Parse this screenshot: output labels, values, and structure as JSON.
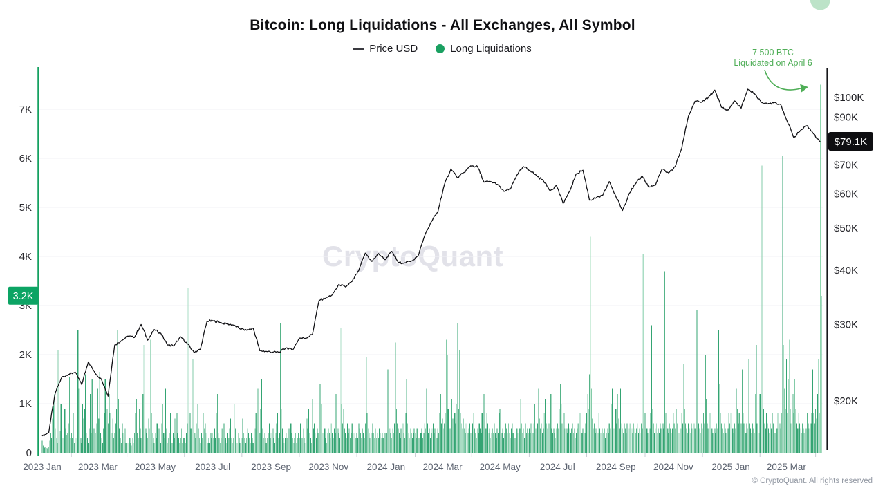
{
  "page": {
    "title": "Bitcoin: Long Liquidations - All Exchanges, All Symbol",
    "watermark": "CryptoQuant",
    "copyright": "© CryptoQuant. All rights reserved"
  },
  "legend": {
    "items": [
      {
        "label": "Price USD",
        "marker": "line",
        "color": "#26262b"
      },
      {
        "label": "Long Liquidations",
        "marker": "dot",
        "color": "#1aa061"
      }
    ]
  },
  "annotation": {
    "line1": "7 500 BTC",
    "line2": "Liquidated on April 6",
    "color": "#4fae57"
  },
  "badges": {
    "left_value": "3.2K",
    "left_bg": "#0ca464",
    "right_value": "$79.1K",
    "right_bg": "#0e0e11"
  },
  "axes": {
    "left": {
      "unit": "K BTC",
      "tick_labels": [
        "7K",
        "6K",
        "5K",
        "4K",
        "3K",
        "2K",
        "1K",
        "0"
      ],
      "tick_values": [
        7,
        6,
        5,
        4,
        3,
        2,
        1,
        0
      ],
      "color": "#15a161"
    },
    "right": {
      "unit": "USD",
      "scale": "log",
      "tick_labels": [
        "$100K",
        "$90K",
        "$70K",
        "$60K",
        "$50K",
        "$40K",
        "$30K",
        "$20K"
      ],
      "tick_values": [
        100,
        90,
        70,
        60,
        50,
        40,
        30,
        20
      ],
      "color": "#17171a"
    },
    "x": {
      "tick_labels": [
        "2023 Jan",
        "2023 Mar",
        "2023 May",
        "2023 Jul",
        "2023 Sep",
        "2023 Nov",
        "2024 Jan",
        "2024 Mar",
        "2024 May",
        "2024 Jul",
        "2024 Sep",
        "2024 Nov",
        "2025 Jan",
        "2025 Mar"
      ],
      "tick_days": [
        0,
        59,
        120,
        181,
        243,
        304,
        365,
        425,
        486,
        547,
        609,
        670,
        731,
        790
      ],
      "color": "#5c6370"
    }
  },
  "chart_data": {
    "type": "mixed",
    "title": "Bitcoin: Long Liquidations - All Exchanges, All Symbol",
    "x_start": "2023-01-01",
    "x_end": "2025-04-07",
    "left_ylim": [
      0,
      7.86
    ],
    "right_scale": "log",
    "right_ylim": [
      17,
      110
    ],
    "grid": "horizontal",
    "highlight": {
      "date": "2025-04-06",
      "value_k_btc": 7.5
    },
    "latest": {
      "long_liquidations_k_btc": 3.2,
      "price_usd_k": 79.1
    },
    "months": [
      "2023-01",
      "2023-02",
      "2023-03",
      "2023-04",
      "2023-05",
      "2023-06",
      "2023-07",
      "2023-08",
      "2023-09",
      "2023-10",
      "2023-11",
      "2023-12",
      "2024-01",
      "2024-02",
      "2024-03",
      "2024-04",
      "2024-05",
      "2024-06",
      "2024-07",
      "2024-08",
      "2024-09",
      "2024-10",
      "2024-11",
      "2024-12",
      "2025-01",
      "2025-02",
      "2025-03",
      "2025-04"
    ],
    "series": [
      {
        "name": "Long Liquidations",
        "type": "bar",
        "axis": "left",
        "unit": "K BTC",
        "interval": "1 day",
        "values_by_month": [
          [
            0.25,
            0.15,
            0.1,
            0.12,
            0.3,
            0.1,
            0.08,
            0.12,
            0.25,
            0.4,
            0.3,
            0.7,
            0.95,
            1.2,
            0.5,
            0.3,
            0.2,
            2.1,
            0.8,
            0.45,
            1.0,
            0.6,
            0.3,
            0.2,
            0.9,
            0.5,
            0.35,
            0.4,
            0.6,
            1.55,
            0.3
          ],
          [
            0.4,
            0.3,
            0.8,
            0.2,
            0.15,
            0.3,
            0.6,
            2.5,
            1.3,
            0.5,
            0.3,
            0.2,
            1.0,
            0.7,
            0.9,
            1.6,
            0.4,
            0.3,
            0.2,
            0.5,
            1.2,
            0.4,
            1.5,
            0.8,
            0.5,
            0.3,
            0.4,
            0.6
          ],
          [
            1.3,
            0.7,
            1.65,
            0.4,
            0.3,
            0.2,
            0.5,
            0.8,
            1.5,
            1.7,
            0.9,
            0.6,
            1.2,
            0.8,
            0.5,
            0.4,
            0.7,
            0.3,
            0.4,
            0.6,
            0.9,
            2.5,
            1.1,
            0.5,
            0.3,
            0.2,
            0.6,
            0.4,
            0.3,
            0.5,
            0.2
          ],
          [
            0.3,
            0.2,
            0.5,
            0.3,
            0.2,
            0.15,
            0.3,
            0.2,
            0.4,
            0.8,
            1.1,
            0.4,
            0.3,
            0.9,
            0.5,
            0.3,
            0.6,
            1.2,
            2.2,
            1.0,
            0.5,
            0.4,
            0.3,
            0.7,
            0.5,
            2.3,
            0.8,
            0.4,
            0.3,
            0.2
          ],
          [
            0.4,
            0.3,
            0.6,
            2.2,
            0.5,
            0.3,
            0.2,
            0.6,
            1.0,
            0.4,
            0.3,
            1.3,
            0.5,
            0.2,
            0.3,
            0.4,
            0.8,
            0.3,
            0.2,
            0.4,
            0.3,
            0.7,
            1.1,
            0.8,
            0.4,
            0.3,
            0.2,
            0.3,
            0.5,
            0.2,
            0.3
          ],
          [
            0.3,
            0.2,
            0.4,
            0.6,
            3.35,
            1.2,
            0.8,
            0.5,
            0.4,
            1.9,
            0.7,
            0.4,
            0.3,
            0.6,
            1.0,
            0.5,
            0.3,
            0.2,
            0.4,
            0.3,
            0.8,
            0.5,
            0.6,
            0.4,
            0.3,
            0.2,
            0.3,
            0.2,
            0.4,
            0.3
          ],
          [
            0.4,
            0.3,
            0.5,
            0.3,
            0.8,
            1.2,
            0.4,
            0.3,
            0.2,
            0.3,
            0.5,
            0.4,
            0.6,
            1.4,
            0.3,
            0.2,
            0.4,
            0.3,
            0.5,
            0.7,
            0.3,
            0.2,
            0.3,
            1.0,
            0.5,
            0.3,
            0.2,
            0.4,
            0.3,
            0.2,
            0.3
          ],
          [
            0.3,
            0.7,
            0.4,
            0.3,
            0.2,
            0.3,
            0.5,
            0.4,
            0.3,
            0.2,
            0.4,
            0.3,
            0.2,
            0.3,
            0.5,
            0.8,
            5.7,
            1.3,
            0.6,
            0.4,
            0.9,
            1.5,
            0.5,
            0.3,
            0.4,
            0.3,
            0.2,
            0.3,
            0.4,
            0.6,
            0.3
          ],
          [
            0.4,
            0.3,
            0.5,
            0.3,
            0.2,
            0.4,
            0.6,
            0.8,
            0.3,
            0.4,
            2.65,
            0.9,
            0.5,
            0.3,
            0.2,
            0.3,
            0.4,
            0.3,
            1.0,
            0.5,
            0.3,
            0.6,
            0.4,
            0.3,
            0.2,
            0.3,
            0.4,
            0.2,
            0.3,
            0.4
          ],
          [
            0.3,
            0.6,
            0.4,
            0.3,
            0.5,
            0.3,
            0.2,
            0.4,
            0.7,
            0.5,
            0.9,
            0.4,
            0.3,
            0.2,
            1.1,
            0.5,
            0.6,
            0.4,
            0.3,
            0.5,
            0.4,
            0.3,
            1.4,
            1.0,
            0.6,
            0.4,
            0.3,
            0.5,
            0.3,
            0.2,
            0.4
          ],
          [
            0.5,
            0.4,
            0.3,
            0.6,
            0.4,
            0.3,
            0.5,
            0.4,
            1.2,
            0.8,
            0.5,
            0.4,
            0.3,
            2.55,
            1.0,
            0.6,
            0.9,
            0.5,
            0.4,
            0.3,
            0.6,
            0.4,
            0.5,
            0.3,
            0.4,
            0.6,
            0.3,
            0.4,
            0.5,
            0.3
          ],
          [
            0.4,
            0.3,
            0.6,
            0.5,
            0.4,
            0.3,
            0.5,
            0.4,
            0.3,
            0.6,
            1.95,
            0.8,
            0.5,
            0.4,
            0.3,
            0.5,
            0.4,
            0.6,
            0.4,
            0.3,
            0.5,
            0.3,
            0.4,
            0.3,
            0.5,
            0.4,
            0.3,
            0.4,
            0.3,
            0.5,
            0.4
          ],
          [
            0.5,
            0.4,
            1.7,
            0.6,
            0.5,
            0.4,
            0.3,
            0.5,
            0.4,
            0.6,
            2.25,
            0.9,
            0.6,
            0.5,
            0.4,
            0.3,
            0.5,
            0.4,
            0.6,
            0.4,
            0.3,
            0.8,
            1.5,
            0.6,
            0.4,
            0.3,
            0.5,
            0.4,
            0.3,
            0.4,
            0.5
          ],
          [
            0.4,
            0.3,
            0.5,
            0.4,
            0.3,
            0.6,
            0.4,
            0.5,
            0.3,
            0.4,
            0.6,
            0.5,
            1.3,
            0.6,
            0.4,
            0.5,
            0.3,
            0.4,
            0.5,
            0.6,
            0.4,
            0.5,
            0.4,
            0.3,
            0.5,
            0.4,
            0.8,
            1.2,
            0.6
          ],
          [
            0.7,
            0.5,
            0.6,
            0.8,
            2.3,
            2.0,
            0.9,
            0.6,
            0.5,
            0.8,
            1.1,
            0.7,
            0.5,
            0.8,
            0.6,
            1.0,
            2.65,
            0.9,
            2.1,
            0.8,
            0.6,
            0.5,
            0.7,
            0.5,
            0.4,
            0.6,
            0.5,
            0.4,
            0.5,
            0.6,
            0.4
          ],
          [
            0.5,
            0.6,
            0.8,
            0.5,
            0.4,
            0.3,
            0.5,
            0.4,
            0.6,
            0.5,
            0.4,
            0.8,
            1.9,
            1.2,
            0.7,
            0.5,
            0.8,
            0.6,
            0.4,
            0.5,
            0.3,
            0.4,
            0.5,
            0.4,
            0.6,
            0.4,
            0.3,
            0.5,
            0.4,
            0.8
          ],
          [
            0.9,
            0.6,
            0.4,
            0.5,
            0.3,
            0.4,
            0.6,
            0.5,
            0.4,
            0.6,
            0.4,
            0.3,
            0.5,
            0.6,
            0.4,
            0.5,
            0.3,
            0.4,
            0.5,
            0.4,
            0.6,
            0.5,
            1.1,
            0.6,
            0.4,
            0.5,
            0.3,
            0.6,
            0.4,
            0.5,
            0.4
          ],
          [
            0.5,
            0.4,
            0.6,
            0.5,
            0.4,
            0.6,
            1.0,
            0.5,
            0.4,
            0.6,
            1.3,
            0.7,
            0.5,
            0.6,
            0.4,
            0.5,
            0.8,
            1.1,
            0.6,
            0.5,
            0.4,
            0.6,
            0.5,
            1.2,
            0.5,
            0.4,
            0.5,
            0.4,
            0.3,
            0.5
          ],
          [
            0.6,
            0.5,
            0.9,
            1.4,
            1.0,
            0.6,
            0.5,
            0.8,
            0.5,
            0.4,
            0.5,
            0.4,
            0.6,
            0.5,
            0.4,
            0.5,
            0.6,
            0.4,
            0.5,
            0.3,
            0.4,
            0.5,
            0.6,
            0.4,
            0.8,
            0.5,
            0.4,
            0.5,
            0.3,
            0.4,
            0.6
          ],
          [
            0.8,
            1.2,
            0.9,
            1.6,
            4.4,
            1.3,
            0.7,
            0.5,
            0.6,
            0.4,
            0.5,
            0.6,
            0.4,
            0.8,
            0.5,
            0.4,
            0.6,
            0.5,
            0.4,
            0.5,
            0.3,
            0.4,
            0.5,
            0.4,
            0.6,
            0.5,
            1.0,
            1.3,
            0.6,
            0.5,
            0.4
          ],
          [
            0.9,
            0.6,
            1.2,
            0.7,
            0.5,
            1.3,
            0.6,
            0.5,
            0.4,
            0.6,
            0.5,
            0.4,
            0.6,
            0.4,
            0.5,
            0.6,
            0.4,
            0.5,
            0.4,
            0.6,
            0.5,
            0.4,
            0.5,
            0.6,
            0.4,
            0.5,
            0.4,
            0.6,
            0.5,
            4.05
          ],
          [
            1.1,
            0.8,
            0.6,
            0.5,
            0.4,
            0.6,
            0.5,
            0.8,
            2.6,
            0.9,
            0.6,
            0.4,
            0.5,
            0.6,
            0.4,
            0.5,
            0.4,
            0.6,
            0.5,
            0.4,
            0.6,
            0.5,
            3.7,
            0.8,
            0.6,
            0.5,
            0.4,
            0.6,
            0.5,
            0.4,
            0.5
          ],
          [
            0.8,
            0.6,
            0.5,
            0.9,
            0.6,
            0.5,
            0.4,
            0.6,
            0.5,
            0.8,
            0.6,
            1.8,
            0.9,
            0.6,
            0.5,
            0.4,
            0.6,
            0.5,
            0.4,
            0.6,
            0.5,
            0.8,
            0.6,
            0.5,
            1.2,
            2.9,
            1.0,
            0.6,
            0.5,
            0.4
          ],
          [
            0.6,
            0.5,
            0.8,
            0.6,
            2.0,
            1.1,
            0.6,
            0.5,
            2.85,
            0.8,
            0.6,
            0.5,
            0.4,
            0.6,
            0.5,
            0.4,
            0.6,
            0.5,
            2.5,
            1.4,
            0.8,
            0.6,
            0.5,
            0.4,
            0.6,
            0.5,
            0.4,
            0.6,
            0.5,
            0.8,
            0.6
          ],
          [
            0.8,
            0.6,
            0.5,
            0.4,
            0.6,
            0.5,
            1.3,
            0.9,
            0.6,
            0.8,
            0.5,
            0.6,
            1.7,
            0.8,
            0.6,
            0.5,
            0.4,
            0.6,
            0.5,
            1.9,
            0.6,
            0.5,
            0.4,
            0.6,
            0.5,
            0.4,
            1.2,
            2.2,
            0.6,
            0.5,
            0.4
          ],
          [
            1.2,
            0.8,
            5.85,
            1.5,
            0.9,
            0.6,
            0.5,
            0.8,
            0.6,
            0.5,
            0.4,
            0.6,
            0.5,
            0.8,
            0.6,
            0.5,
            0.4,
            0.6,
            0.5,
            0.8,
            1.1,
            0.6,
            0.5,
            0.8,
            6.05,
            2.2,
            1.3,
            0.9
          ],
          [
            1.9,
            0.8,
            1.5,
            2.3,
            0.9,
            0.6,
            4.8,
            1.2,
            0.8,
            1.5,
            0.9,
            0.6,
            0.5,
            0.8,
            0.6,
            0.5,
            0.4,
            0.6,
            0.5,
            0.4,
            0.6,
            0.5,
            0.8,
            0.6,
            0.5,
            4.7,
            0.6,
            0.8,
            1.7,
            0.8,
            0.6
          ],
          [
            0.9,
            0.7,
            1.2,
            1.9,
            0.8,
            7.5,
            3.2
          ]
        ]
      },
      {
        "name": "Price USD",
        "type": "line",
        "axis": "right",
        "unit": "K USD",
        "interval": "7 days",
        "values": [
          16.6,
          16.9,
          20.9,
          22.7,
          23.0,
          23.3,
          21.8,
          24.6,
          23.2,
          22.4,
          20.5,
          26.9,
          27.5,
          28.2,
          28.0,
          30.0,
          27.6,
          29.2,
          28.6,
          26.9,
          26.8,
          28.1,
          27.1,
          25.9,
          26.3,
          30.5,
          30.6,
          30.3,
          30.1,
          29.9,
          29.3,
          29.1,
          29.4,
          26.1,
          26.0,
          25.9,
          25.9,
          26.5,
          26.2,
          27.9,
          27.9,
          28.5,
          34.1,
          34.5,
          35.1,
          37.1,
          36.6,
          37.7,
          39.9,
          43.8,
          41.9,
          43.7,
          42.3,
          44.2,
          41.7,
          41.6,
          42.0,
          43.1,
          48.0,
          51.7,
          54.5,
          63.0,
          68.5,
          65.3,
          67.2,
          69.6,
          69.4,
          63.8,
          64.0,
          63.1,
          60.8,
          61.5,
          66.3,
          69.3,
          67.8,
          66.0,
          64.3,
          61.0,
          62.7,
          57.0,
          60.8,
          66.7,
          68.0,
          58.0,
          58.7,
          59.5,
          64.0,
          59.1,
          54.9,
          60.0,
          63.3,
          65.9,
          62.1,
          62.8,
          68.4,
          67.0,
          69.3,
          76.5,
          90.5,
          98.0,
          97.5,
          99.9,
          104.0,
          95.0,
          93.5,
          98.2,
          94.5,
          104.5,
          102.1,
          97.7,
          96.6,
          97.5,
          96.3,
          88.0,
          80.7,
          84.0,
          86.1,
          82.4,
          79.1
        ]
      }
    ]
  }
}
